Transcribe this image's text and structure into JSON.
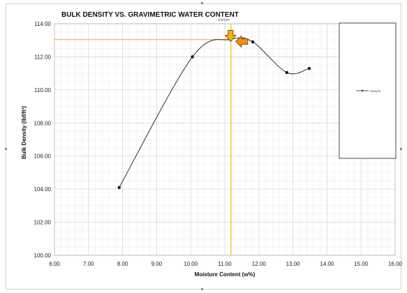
{
  "colors": {
    "grid": "#d7d7d7",
    "minor_grid": "#e7e7e7",
    "axis": "#444444",
    "series_line": "#1f1f1f",
    "marker": "#111111",
    "vertical_guide": "#f2c200",
    "horizontal_guide": "#f7b57a",
    "down_arrow_fill": "#f5b20f",
    "left_arrow_fill": "#f58a2b",
    "arrow_stroke": "#8b4c00"
  },
  "icons": {
    "down_arrow": "down-arrow-icon",
    "left_arrow": "left-arrow-icon"
  },
  "chart_data": {
    "type": "line",
    "title": "BULK DENSITY VS. GRAVIMETRIC WATER CONTENT",
    "xlabel": "Moisture Content (w%)",
    "ylabel": "Bulk Density (lbf/ft³)",
    "xlim": [
      6,
      16
    ],
    "ylim": [
      100,
      114
    ],
    "grid": true,
    "legend_placement": "right",
    "x_ticks": [
      6,
      7,
      8,
      9,
      10,
      11,
      12,
      13,
      14,
      15,
      16
    ],
    "y_ticks": [
      100,
      102,
      104,
      106,
      108,
      110,
      112,
      114
    ],
    "x_tick_labels": [
      "6.00",
      "7.00",
      "8.00",
      "9.00",
      "10.00",
      "11.00",
      "12.00",
      "13.00",
      "14.00",
      "15.00",
      "16.00"
    ],
    "y_tick_labels": [
      "100.00",
      "102.00",
      "104.00",
      "106.00",
      "108.00",
      "110.00",
      "112.00",
      "114.00"
    ],
    "series": [
      {
        "name": "Sample",
        "x": [
          7.9,
          10.05,
          11.18,
          11.82,
          12.82,
          13.48
        ],
        "y": [
          104.1,
          112.0,
          113.05,
          112.9,
          111.05,
          111.3
        ]
      }
    ],
    "annotations": {
      "series_label": "Sample",
      "optimum": {
        "x": 11.18,
        "y": 113.05
      }
    }
  }
}
